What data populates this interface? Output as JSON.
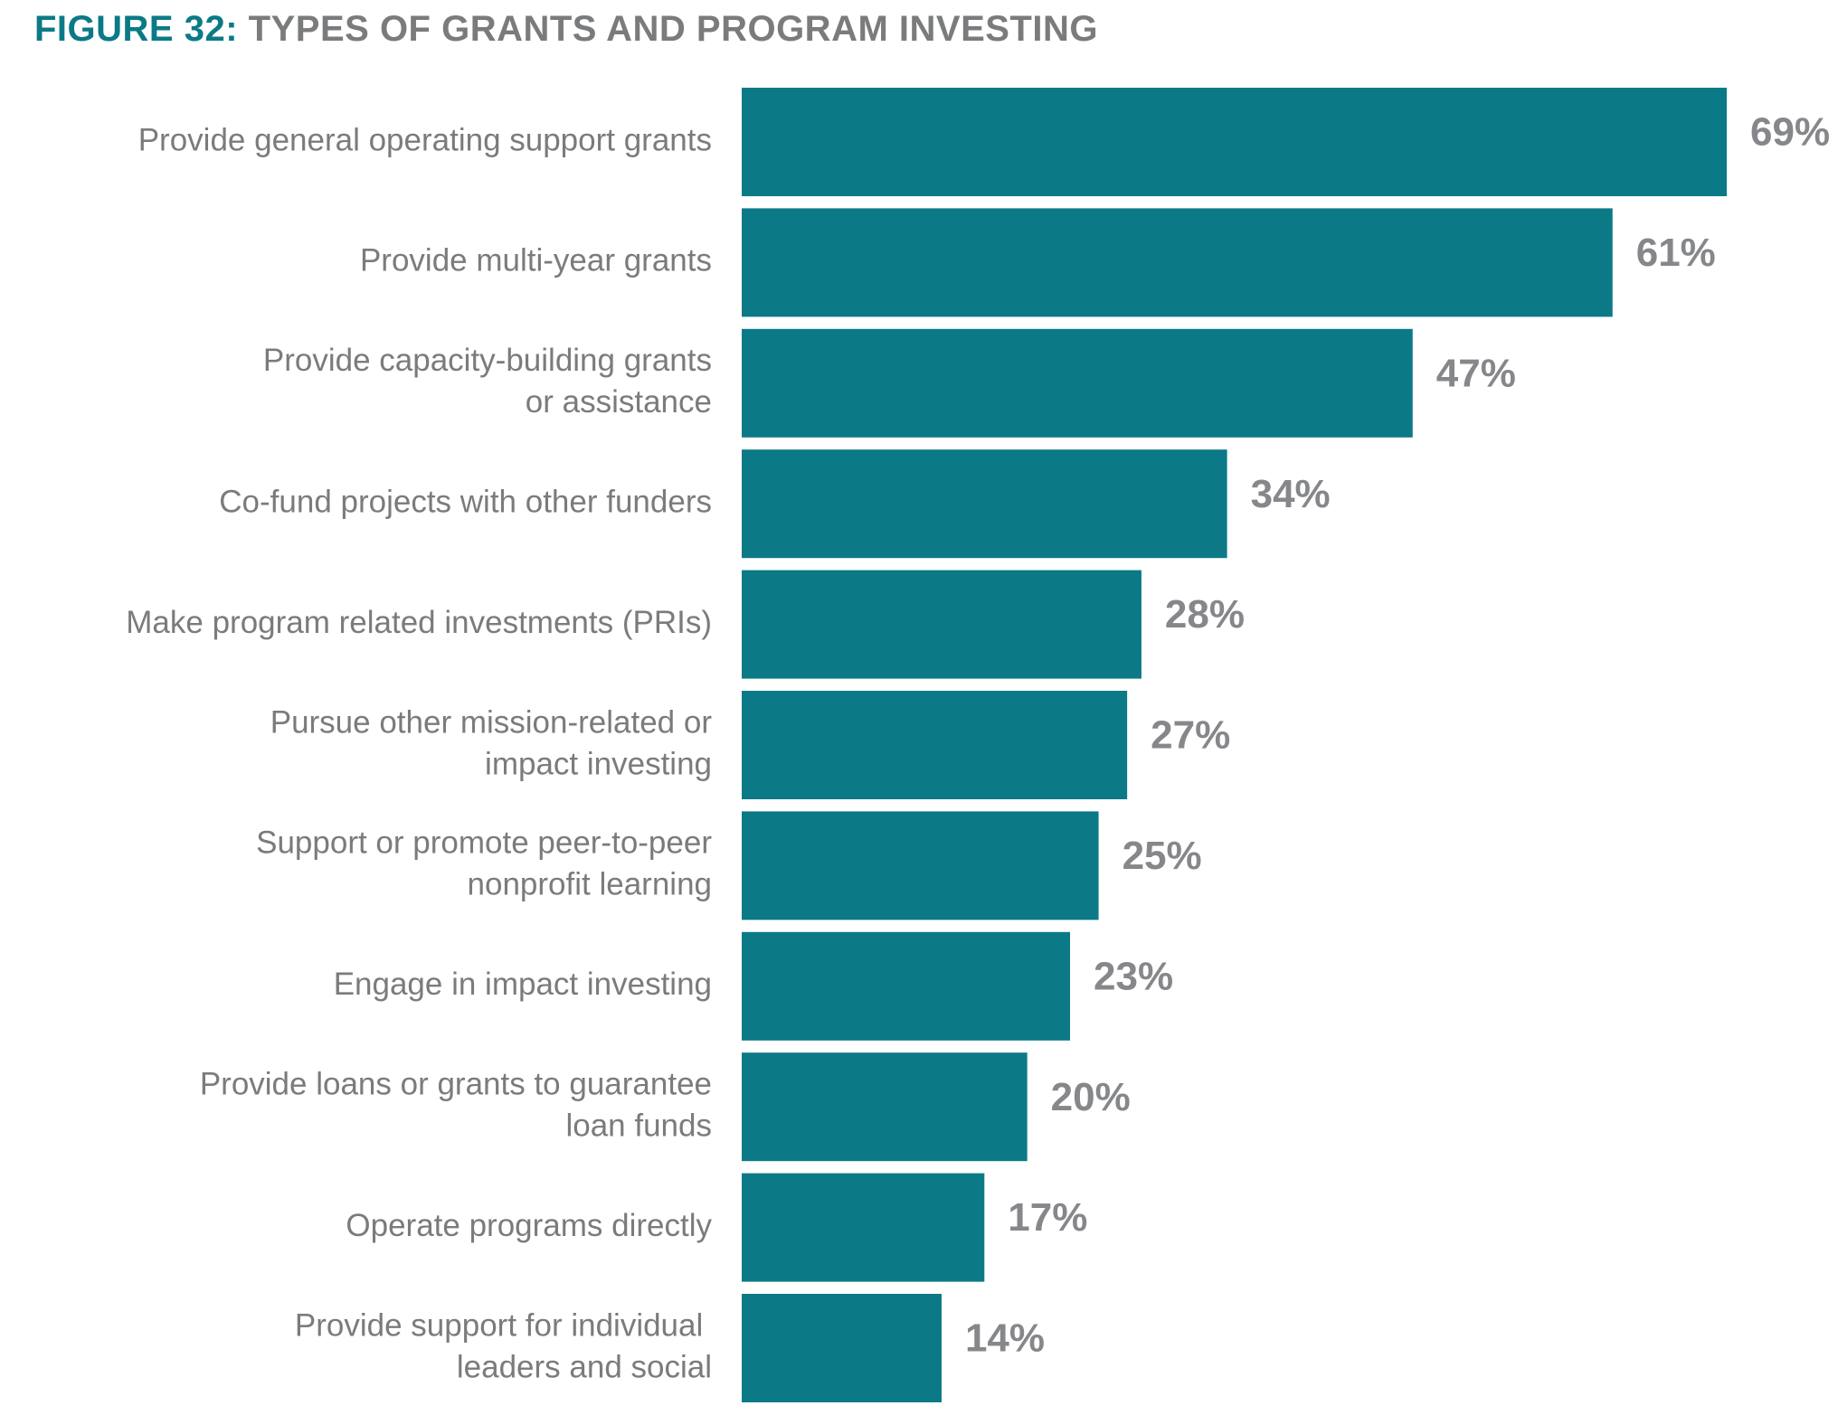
{
  "title": {
    "figure_number": "FIGURE 32:",
    "text": "TYPES OF GRANTS AND PROGRAM INVESTING"
  },
  "colors": {
    "bar": "#0b7a86",
    "title_accent": "#0b7a86",
    "text": "#7a7b7d",
    "value_text": "#85878a"
  },
  "chart_data": {
    "type": "bar",
    "orientation": "horizontal",
    "categories": [
      [
        "Provide general operating support grants"
      ],
      [
        "Provide multi-year grants"
      ],
      [
        "Provide capacity-building grants",
        "or assistance"
      ],
      [
        "Co-fund projects with other funders"
      ],
      [
        "Make program related investments (PRIs)"
      ],
      [
        "Pursue other mission-related or",
        "impact investing"
      ],
      [
        "Support or promote peer-to-peer",
        "nonprofit learning"
      ],
      [
        "Engage in impact investing"
      ],
      [
        "Provide loans or grants to guarantee",
        "loan funds"
      ],
      [
        "Operate programs directly"
      ],
      [
        "Provide support for individual ",
        "leaders and social"
      ]
    ],
    "values": [
      69,
      61,
      47,
      34,
      28,
      27,
      25,
      23,
      20,
      17,
      14
    ],
    "value_labels": [
      "69%",
      "61%",
      "47%",
      "34%",
      "28%",
      "27%",
      "25%",
      "23%",
      "20%",
      "17%",
      "14%"
    ],
    "unit": "%",
    "xlim": [
      0,
      69
    ],
    "grid": false,
    "legend": "none"
  }
}
